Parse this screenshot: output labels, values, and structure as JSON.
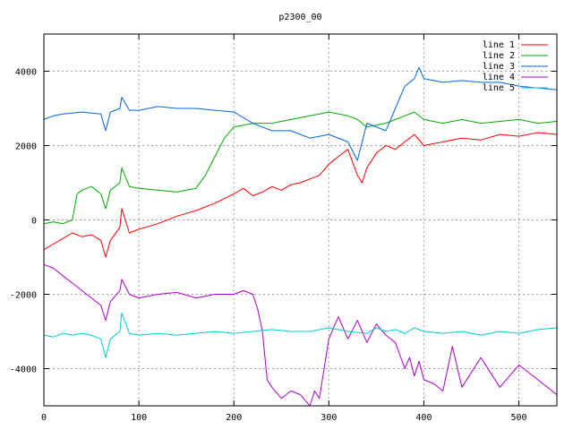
{
  "chart_data": {
    "type": "line",
    "title": "p2300_00",
    "xlabel": "",
    "ylabel": "",
    "xlim": [
      0,
      540
    ],
    "ylim": [
      -5000,
      5000
    ],
    "x_ticks": [
      0,
      100,
      200,
      300,
      400,
      500
    ],
    "y_ticks": [
      -4000,
      -2000,
      0,
      2000,
      4000
    ],
    "grid": true,
    "legend_position": "top-right",
    "series": [
      {
        "name": "line 1",
        "color": "#ff0000",
        "x": [
          0,
          10,
          20,
          30,
          40,
          50,
          60,
          65,
          70,
          80,
          82,
          90,
          100,
          120,
          140,
          160,
          180,
          200,
          210,
          220,
          230,
          240,
          250,
          260,
          270,
          280,
          290,
          300,
          310,
          320,
          330,
          335,
          340,
          350,
          360,
          370,
          380,
          390,
          400,
          420,
          440,
          460,
          480,
          500,
          520,
          540
        ],
        "y": [
          -800,
          -650,
          -500,
          -350,
          -450,
          -400,
          -550,
          -1000,
          -550,
          -200,
          300,
          -350,
          -250,
          -100,
          100,
          250,
          450,
          700,
          850,
          650,
          750,
          900,
          800,
          950,
          1000,
          1100,
          1200,
          1500,
          1700,
          1900,
          1200,
          1000,
          1400,
          1800,
          2000,
          1900,
          2100,
          2300,
          2000,
          2100,
          2200,
          2150,
          2300,
          2250,
          2350,
          2300
        ]
      },
      {
        "name": "line 2",
        "color": "#00aa00",
        "x": [
          0,
          10,
          20,
          30,
          35,
          40,
          50,
          60,
          65,
          70,
          80,
          82,
          90,
          100,
          120,
          140,
          160,
          170,
          180,
          190,
          200,
          220,
          240,
          260,
          280,
          300,
          320,
          330,
          340,
          360,
          370,
          380,
          390,
          400,
          420,
          440,
          460,
          480,
          500,
          520,
          540
        ],
        "y": [
          -100,
          -50,
          -100,
          0,
          700,
          800,
          900,
          700,
          300,
          800,
          1000,
          1400,
          900,
          850,
          800,
          750,
          850,
          1200,
          1700,
          2200,
          2500,
          2600,
          2600,
          2700,
          2800,
          2900,
          2800,
          2700,
          2500,
          2600,
          2700,
          2800,
          2900,
          2700,
          2600,
          2700,
          2600,
          2650,
          2700,
          2600,
          2650
        ]
      },
      {
        "name": "line 3",
        "color": "#0066dd",
        "x": [
          0,
          10,
          20,
          40,
          60,
          65,
          70,
          80,
          82,
          90,
          100,
          120,
          140,
          160,
          180,
          200,
          220,
          230,
          240,
          260,
          280,
          300,
          320,
          330,
          340,
          360,
          370,
          380,
          390,
          395,
          400,
          420,
          440,
          460,
          480,
          500,
          520,
          540
        ],
        "y": [
          2700,
          2800,
          2850,
          2900,
          2850,
          2400,
          2900,
          3000,
          3300,
          2950,
          2950,
          3050,
          3000,
          3000,
          2950,
          2900,
          2600,
          2500,
          2400,
          2400,
          2200,
          2300,
          2100,
          1600,
          2600,
          2400,
          3000,
          3600,
          3800,
          4100,
          3800,
          3700,
          3750,
          3700,
          3700,
          3600,
          3550,
          3500
        ]
      },
      {
        "name": "line 4",
        "color": "#aa00cc",
        "x": [
          0,
          10,
          20,
          30,
          40,
          50,
          60,
          65,
          70,
          80,
          82,
          90,
          100,
          120,
          140,
          160,
          180,
          200,
          210,
          220,
          225,
          230,
          235,
          240,
          250,
          260,
          270,
          280,
          285,
          290,
          295,
          300,
          310,
          320,
          330,
          340,
          350,
          360,
          370,
          380,
          385,
          390,
          395,
          400,
          410,
          420,
          430,
          440,
          460,
          480,
          500,
          520,
          540
        ],
        "y": [
          -1200,
          -1300,
          -1500,
          -1700,
          -1900,
          -2100,
          -2300,
          -2700,
          -2200,
          -1900,
          -1600,
          -2000,
          -2100,
          -2000,
          -1950,
          -2100,
          -2000,
          -2000,
          -1900,
          -2000,
          -2400,
          -3000,
          -4300,
          -4500,
          -4800,
          -4600,
          -4700,
          -5000,
          -4600,
          -4800,
          -4000,
          -3200,
          -2600,
          -3200,
          -2700,
          -3300,
          -2800,
          -3100,
          -3300,
          -4000,
          -3700,
          -4200,
          -3800,
          -4300,
          -4400,
          -4600,
          -3400,
          -4500,
          -3700,
          -4500,
          -3900,
          -4300,
          -4700
        ]
      },
      {
        "name": "line 5",
        "color": "#00cccc",
        "x": [
          0,
          10,
          20,
          30,
          40,
          50,
          60,
          65,
          70,
          80,
          82,
          90,
          100,
          120,
          140,
          160,
          180,
          200,
          220,
          240,
          260,
          280,
          300,
          320,
          340,
          350,
          360,
          370,
          380,
          390,
          400,
          420,
          440,
          460,
          480,
          500,
          520,
          540
        ],
        "y": [
          -3100,
          -3150,
          -3050,
          -3100,
          -3050,
          -3100,
          -3200,
          -3700,
          -3200,
          -3000,
          -2500,
          -3050,
          -3100,
          -3050,
          -3100,
          -3050,
          -3000,
          -3050,
          -3000,
          -2950,
          -3000,
          -3000,
          -2900,
          -3000,
          -3050,
          -2900,
          -3000,
          -2950,
          -3050,
          -2900,
          -3000,
          -3050,
          -3000,
          -3100,
          -3000,
          -3050,
          -2950,
          -2900
        ]
      }
    ]
  }
}
